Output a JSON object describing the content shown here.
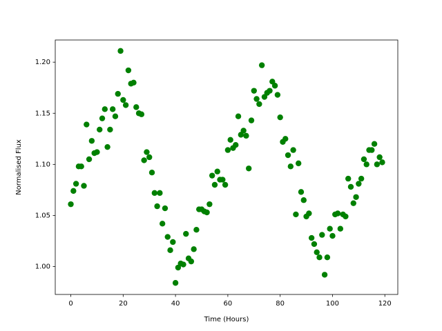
{
  "chart_data": {
    "type": "scatter",
    "xlabel": "Time (Hours)",
    "ylabel": "Normalised Flux",
    "color": "#008000",
    "x": [
      0,
      1,
      2,
      3,
      4,
      5,
      6,
      7,
      8,
      9,
      10,
      11,
      12,
      13,
      14,
      15,
      16,
      17,
      18,
      19,
      20,
      21,
      22,
      23,
      24,
      25,
      26,
      27,
      28,
      29,
      30,
      31,
      32,
      33,
      34,
      35,
      36,
      37,
      38,
      39,
      40,
      41,
      42,
      43,
      44,
      45,
      46,
      47,
      48,
      49,
      50,
      51,
      52,
      53,
      54,
      55,
      56,
      57,
      58,
      59,
      60,
      61,
      62,
      63,
      64,
      65,
      66,
      67,
      68,
      69,
      70,
      71,
      72,
      73,
      74,
      75,
      76,
      77,
      78,
      79,
      80,
      81,
      82,
      83,
      84,
      85,
      86,
      87,
      88,
      89,
      90,
      91,
      92,
      93,
      94,
      95,
      96,
      97,
      98,
      99,
      100,
      101,
      102,
      103,
      104,
      105,
      106,
      107,
      108,
      109,
      110,
      111,
      112,
      113,
      114,
      115,
      116,
      117,
      118,
      119
    ],
    "values": [
      1.061,
      1.074,
      1.081,
      1.098,
      1.098,
      1.079,
      1.139,
      1.105,
      1.123,
      1.111,
      1.112,
      1.134,
      1.145,
      1.154,
      1.117,
      1.134,
      1.154,
      1.147,
      1.169,
      1.211,
      1.163,
      1.158,
      1.192,
      1.179,
      1.18,
      1.156,
      1.15,
      1.149,
      1.104,
      1.112,
      1.107,
      1.092,
      1.072,
      1.059,
      1.072,
      1.042,
      1.057,
      1.029,
      1.016,
      1.024,
      0.984,
      0.999,
      1.003,
      1.002,
      1.032,
      1.008,
      1.005,
      1.017,
      1.036,
      1.056,
      1.056,
      1.054,
      1.053,
      1.061,
      1.089,
      1.08,
      1.093,
      1.085,
      1.085,
      1.08,
      1.114,
      1.124,
      1.116,
      1.119,
      1.147,
      1.129,
      1.133,
      1.128,
      1.096,
      1.143,
      1.172,
      1.164,
      1.159,
      1.197,
      1.166,
      1.17,
      1.172,
      1.181,
      1.177,
      1.168,
      1.146,
      1.122,
      1.125,
      1.109,
      1.098,
      1.114,
      1.051,
      1.101,
      1.073,
      1.065,
      1.049,
      1.052,
      1.028,
      1.022,
      1.014,
      1.009,
      1.031,
      0.992,
      1.009,
      1.037,
      1.03,
      1.051,
      1.052,
      1.037,
      1.051,
      1.049,
      1.086,
      1.078,
      1.062,
      1.068,
      1.081,
      1.086,
      1.105,
      1.1,
      1.114,
      1.114,
      1.12,
      1.1,
      1.107,
      1.102
    ],
    "xlim": [
      -5.95,
      124.95
    ],
    "ylim": [
      0.9727,
      1.2217
    ],
    "xticks": [
      0,
      20,
      40,
      60,
      80,
      100,
      120
    ],
    "yticks": [
      {
        "value": 1.0,
        "label": "1.00"
      },
      1.05,
      {
        "value": 1.1,
        "label": "1.10"
      },
      1.15,
      {
        "value": 1.2,
        "label": "1.20"
      }
    ]
  }
}
